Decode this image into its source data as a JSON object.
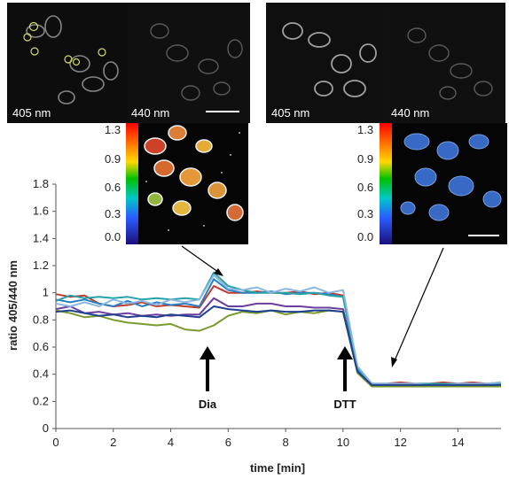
{
  "micrographs": {
    "left": {
      "label_a": "405 nm",
      "label_b": "440 nm"
    },
    "right": {
      "label_a": "405 nm",
      "label_b": "440 nm"
    }
  },
  "colorbars": {
    "left": {
      "ticks": [
        "1.3",
        "0.9",
        "0.6",
        "0.3",
        "0.0"
      ]
    },
    "right": {
      "ticks": [
        "1.3",
        "0.9",
        "0.6",
        "0.3",
        "0.0"
      ]
    }
  },
  "annotations": {
    "dia": "Dia",
    "dtt": "DTT"
  },
  "colors": {
    "series": [
      "#c0392b",
      "#2a7fbf",
      "#6b3fa0",
      "#7a9a2e",
      "#26a3a8",
      "#8ab6e0",
      "#1f3f8f"
    ]
  },
  "chart_data": {
    "type": "line",
    "xlabel": "time [min]",
    "ylabel": "ratio 405/440 nm",
    "xlim": [
      0,
      15.5
    ],
    "ylim": [
      0,
      1.8
    ],
    "xticks": [
      "0",
      "2",
      "4",
      "6",
      "8",
      "10",
      "12",
      "14"
    ],
    "yticks": [
      "0",
      "0.2",
      "0.4",
      "0.6",
      "0.8",
      "1",
      "1.2",
      "1.4",
      "1.6",
      "1.8"
    ],
    "grid": false,
    "x": [
      0,
      0.5,
      1,
      1.5,
      2,
      2.5,
      3,
      3.5,
      4,
      4.5,
      5,
      5.5,
      6,
      6.5,
      7,
      7.5,
      8,
      8.5,
      9,
      9.5,
      10,
      10.5,
      11,
      11.5,
      12,
      12.5,
      13,
      13.5,
      14,
      14.5,
      15,
      15.5
    ],
    "series": [
      {
        "values": [
          0.99,
          0.97,
          0.98,
          0.92,
          0.9,
          0.91,
          0.93,
          0.9,
          0.91,
          0.9,
          0.89,
          1.05,
          1.0,
          1.0,
          1.01,
          1.0,
          1.0,
          1.01,
          0.99,
          1.0,
          0.98,
          0.45,
          0.33,
          0.33,
          0.34,
          0.33,
          0.33,
          0.34,
          0.33,
          0.34,
          0.33,
          0.34
        ]
      },
      {
        "values": [
          0.95,
          0.93,
          0.95,
          0.92,
          0.9,
          0.94,
          0.9,
          0.93,
          0.91,
          0.92,
          0.9,
          1.1,
          1.02,
          1.0,
          1.0,
          1.01,
          0.99,
          1.0,
          1.0,
          0.99,
          0.97,
          0.44,
          0.32,
          0.32,
          0.32,
          0.33,
          0.32,
          0.32,
          0.33,
          0.32,
          0.32,
          0.33
        ]
      },
      {
        "values": [
          0.88,
          0.9,
          0.85,
          0.86,
          0.84,
          0.85,
          0.83,
          0.84,
          0.83,
          0.84,
          0.84,
          0.96,
          0.9,
          0.9,
          0.92,
          0.92,
          0.9,
          0.9,
          0.89,
          0.89,
          0.88,
          0.43,
          0.31,
          0.31,
          0.31,
          0.31,
          0.32,
          0.31,
          0.31,
          0.31,
          0.31,
          0.31
        ]
      },
      {
        "values": [
          0.87,
          0.85,
          0.82,
          0.83,
          0.8,
          0.78,
          0.77,
          0.76,
          0.77,
          0.73,
          0.72,
          0.76,
          0.83,
          0.86,
          0.85,
          0.87,
          0.84,
          0.86,
          0.85,
          0.87,
          0.86,
          0.41,
          0.31,
          0.31,
          0.31,
          0.31,
          0.31,
          0.31,
          0.31,
          0.31,
          0.31,
          0.31
        ]
      },
      {
        "values": [
          0.94,
          0.98,
          0.96,
          0.97,
          0.96,
          0.97,
          0.95,
          0.96,
          0.95,
          0.96,
          0.95,
          1.15,
          1.05,
          1.02,
          1.0,
          1.0,
          1.0,
          0.99,
          1.0,
          0.98,
          0.97,
          0.44,
          0.33,
          0.33,
          0.33,
          0.33,
          0.33,
          0.33,
          0.33,
          0.33,
          0.33,
          0.33
        ]
      },
      {
        "values": [
          0.92,
          0.9,
          0.93,
          0.9,
          0.95,
          0.92,
          0.94,
          0.91,
          0.95,
          0.93,
          0.95,
          1.13,
          1.03,
          1.02,
          1.04,
          1.0,
          1.03,
          1.01,
          1.04,
          1.0,
          1.02,
          0.46,
          0.33,
          0.33,
          0.33,
          0.33,
          0.32,
          0.32,
          0.33,
          0.33,
          0.33,
          0.34
        ]
      },
      {
        "values": [
          0.86,
          0.87,
          0.85,
          0.83,
          0.84,
          0.82,
          0.83,
          0.82,
          0.84,
          0.83,
          0.82,
          0.9,
          0.88,
          0.87,
          0.86,
          0.87,
          0.86,
          0.86,
          0.87,
          0.87,
          0.86,
          0.42,
          0.32,
          0.32,
          0.32,
          0.32,
          0.32,
          0.32,
          0.32,
          0.32,
          0.32,
          0.32
        ]
      }
    ]
  }
}
